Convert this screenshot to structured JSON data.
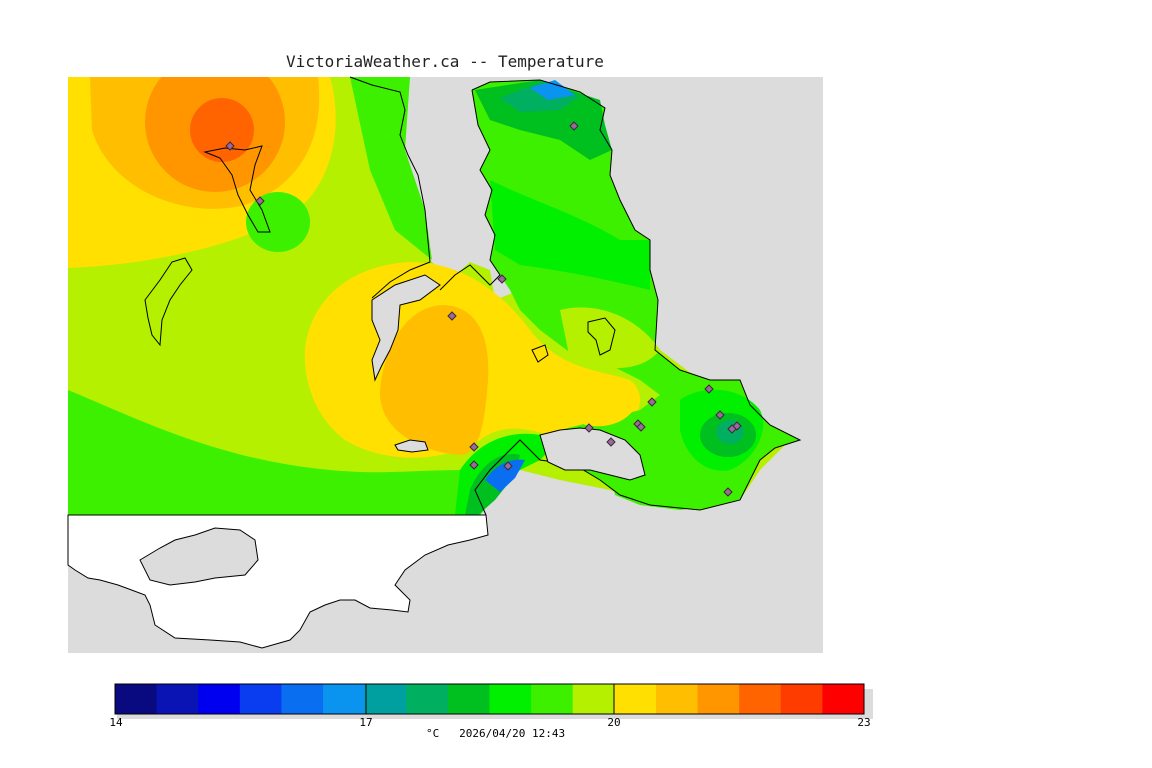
{
  "map": {
    "title": "VictoriaWeather.ca -- Temperature",
    "land_fill": "#dcdcdc",
    "water_fill": "#ffffff",
    "station_marker": "diamond-marker"
  },
  "legend": {
    "unit": "°C",
    "timestamp": "2026/04/20 12:43",
    "ticks": [
      "14",
      "17",
      "20",
      "23"
    ],
    "min": 14,
    "max": 23,
    "colors": [
      "#0a0a80",
      "#0a14b4",
      "#0000f0",
      "#0a3cf0",
      "#0a6ef0",
      "#0a94f0",
      "#00a0a0",
      "#00b060",
      "#00c020",
      "#00f000",
      "#3cf000",
      "#b4f000",
      "#ffe000",
      "#ffbe00",
      "#ff9600",
      "#ff6400",
      "#ff3c00",
      "#ff0000"
    ]
  }
}
